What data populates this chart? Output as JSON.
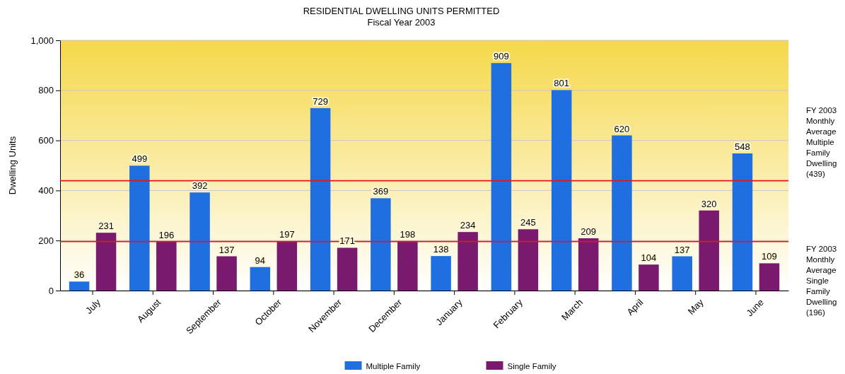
{
  "chart_data": {
    "type": "bar",
    "title": "RESIDENTIAL DWELLING UNITS PERMITTED",
    "subtitle": "Fiscal Year 2003",
    "ylabel": "Dwelling Units",
    "categories": [
      "July",
      "August",
      "September",
      "October",
      "November",
      "December",
      "January",
      "February",
      "March",
      "April",
      "May",
      "June"
    ],
    "series": [
      {
        "name": "Multiple Family",
        "color": "#1f6fe0",
        "values": [
          36,
          499,
          392,
          94,
          729,
          369,
          138,
          909,
          801,
          620,
          137,
          548
        ]
      },
      {
        "name": "Single Family",
        "color": "#7a1a6e",
        "values": [
          231,
          196,
          137,
          197,
          171,
          198,
          234,
          245,
          209,
          104,
          320,
          109
        ]
      }
    ],
    "ylim": [
      0,
      1000
    ],
    "yticks": [
      0,
      200,
      400,
      600,
      800,
      {
        "value": 1000,
        "label": "1,000"
      }
    ],
    "grid": "y",
    "legend": "bottom",
    "data_labels": true,
    "ref_lines": [
      {
        "axis": "y",
        "value": 439,
        "label": "FY 2003 Monthly Average Multiple Family Dwelling (439)",
        "color": "#e8141c"
      },
      {
        "axis": "y",
        "value": 196,
        "label": "FY 2003 Monthly Average Single Family Dwelling (196)",
        "color": "#e8141c"
      }
    ]
  }
}
